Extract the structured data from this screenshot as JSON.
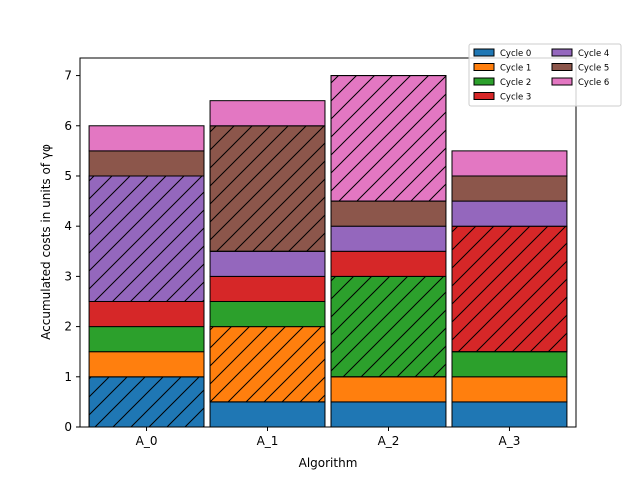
{
  "chart_data": {
    "type": "bar",
    "stacked": true,
    "categories": [
      "A_0",
      "A_1",
      "A_2",
      "A_3"
    ],
    "xlabel": "Algorithm",
    "ylabel": "Accumulated costs in units of γφ",
    "ylim": [
      0,
      7.35
    ],
    "yticks": [
      "0",
      "1",
      "2",
      "3",
      "4",
      "5",
      "6",
      "7"
    ],
    "series": [
      {
        "name": "Cycle 0",
        "color": "#1f77b4",
        "values": [
          1.0,
          0.5,
          0.5,
          0.5
        ]
      },
      {
        "name": "Cycle 1",
        "color": "#ff7f0e",
        "values": [
          0.5,
          1.5,
          0.5,
          0.5
        ]
      },
      {
        "name": "Cycle 2",
        "color": "#2ca02c",
        "values": [
          0.5,
          0.5,
          2.0,
          0.5
        ]
      },
      {
        "name": "Cycle 3",
        "color": "#d62728",
        "values": [
          0.5,
          0.5,
          0.5,
          2.5
        ]
      },
      {
        "name": "Cycle 4",
        "color": "#9467bd",
        "values": [
          2.5,
          0.5,
          0.5,
          0.5
        ]
      },
      {
        "name": "Cycle 5",
        "color": "#8c564b",
        "values": [
          0.5,
          2.5,
          0.5,
          0.5
        ]
      },
      {
        "name": "Cycle 6",
        "color": "#e377c2",
        "values": [
          0.5,
          0.5,
          2.5,
          0.5
        ]
      }
    ],
    "hatched": [
      [
        0,
        0
      ],
      [
        1,
        1
      ],
      [
        2,
        2
      ],
      [
        3,
        3
      ],
      [
        0,
        4
      ],
      [
        1,
        5
      ],
      [
        2,
        6
      ]
    ],
    "legend": {
      "position": "top-right",
      "columns": 2
    },
    "grid": false
  }
}
